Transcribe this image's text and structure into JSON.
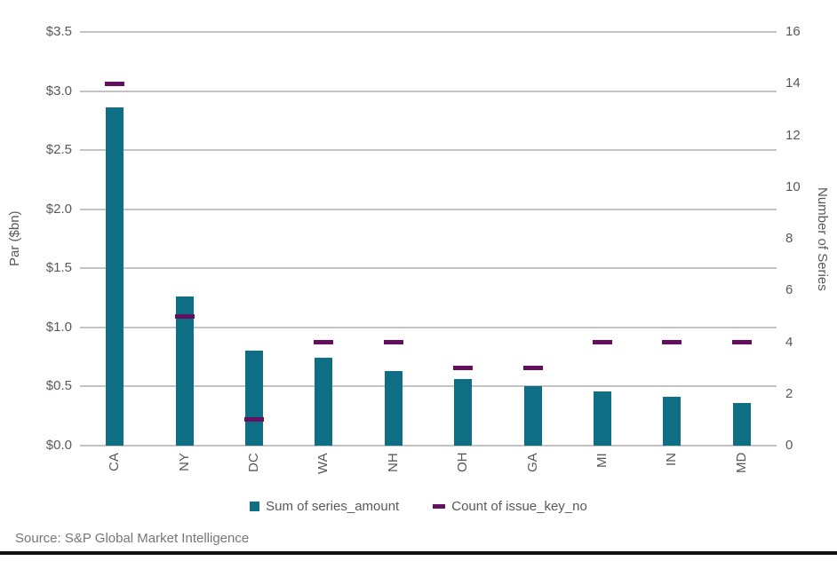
{
  "chart_data": {
    "type": "bar",
    "title": "",
    "categories": [
      "CA",
      "NY",
      "DC",
      "WA",
      "NH",
      "OH",
      "GA",
      "MI",
      "IN",
      "MD"
    ],
    "series": [
      {
        "name": "Sum of series_amount",
        "type": "bar",
        "axis": "left",
        "color": "#0e6e84",
        "values": [
          2.86,
          1.26,
          0.8,
          0.74,
          0.63,
          0.56,
          0.5,
          0.46,
          0.41,
          0.36
        ]
      },
      {
        "name": "Count of issue_key_no",
        "type": "dash-marker",
        "axis": "right",
        "color": "#64105f",
        "values": [
          14,
          5,
          1,
          4,
          4,
          3,
          3,
          4,
          4,
          4
        ]
      }
    ],
    "left_axis": {
      "label": "Par ($bn)",
      "min": 0,
      "max": 3.5,
      "step": 0.5,
      "ticks": [
        "$0.0",
        "$0.5",
        "$1.0",
        "$1.5",
        "$2.0",
        "$2.5",
        "$3.0",
        "$3.5"
      ]
    },
    "right_axis": {
      "label": "Number of Series",
      "min": 0,
      "max": 16,
      "step": 2,
      "ticks": [
        "0",
        "2",
        "4",
        "6",
        "8",
        "10",
        "12",
        "14",
        "16"
      ]
    },
    "grid": "horizontal",
    "legend_position": "bottom"
  },
  "legend": {
    "items": [
      {
        "label": "Sum of series_amount",
        "swatch": "square",
        "color": "#0e6e84"
      },
      {
        "label": "Count of issue_key_no",
        "swatch": "dash",
        "color": "#64105f"
      }
    ]
  },
  "source": {
    "text": "Source: S&P Global Market Intelligence"
  },
  "colors": {
    "bar_teal": "#0e6e84",
    "marker_purple": "#64105f",
    "gridline": "#c3c3c3",
    "axis_text": "#595959",
    "source_text": "#767676",
    "footer_rule": "#0d0d14",
    "background": "#ffffff"
  }
}
